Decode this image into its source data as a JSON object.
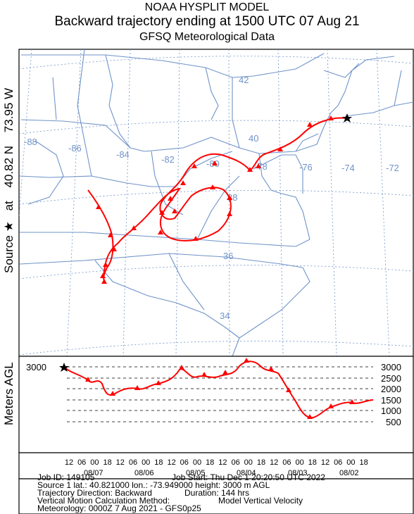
{
  "header": {
    "line1": "NOAA HYSPLIT MODEL",
    "line2": "Backward trajectory ending at 1500 UTC 07 Aug 21",
    "line3": "GFSQ Meteorological Data"
  },
  "side_label": {
    "source_prefix": "Source",
    "star": "★",
    "at_word": "at",
    "lat": "40.82 N",
    "lon": "73.95 W"
  },
  "map": {
    "lat_labels": [
      "42",
      "40",
      "38",
      "36",
      "34"
    ],
    "lon_labels": [
      "-88",
      "-86",
      "-84",
      "-82",
      "-80",
      "-78",
      "-76",
      "-74",
      "-72"
    ],
    "source_marker": "star-icon",
    "colors": {
      "trajectory": "#ff0000",
      "borders": "#6f93c9",
      "grid_labels": "#6f93c9"
    },
    "trajectory": {
      "start": {
        "lat": 40.82,
        "lon": -73.95
      },
      "duration_hours": 144,
      "direction": "Backward"
    }
  },
  "height_panel": {
    "axis_title": "Meters AGL",
    "start_label": "3000",
    "right_ticks": [
      "3000",
      "2500",
      "2000",
      "1500",
      "1000",
      "500"
    ],
    "hour_ticks": [
      "12",
      "06",
      "00",
      "18",
      "12",
      "06",
      "00",
      "18",
      "12",
      "06",
      "00",
      "18",
      "12",
      "06",
      "00",
      "18",
      "12",
      "06",
      "00",
      "18",
      "12",
      "06",
      "00",
      "18"
    ],
    "date_labels": [
      "08/07",
      "08/06",
      "08/05",
      "08/04",
      "08/03",
      "08/02"
    ]
  },
  "info": {
    "job_id": "Job ID: 149105",
    "job_start": "Job Start: Thu Dec  1 20:20:50 UTC 2022",
    "source_line": "Source 1     lat.: 40.821000     lon.: -73.949000     height: 3000 m AGL",
    "traj_direction": "Trajectory Direction: Backward",
    "duration": "Duration: 144 hrs",
    "vertical_method": "Vertical Motion Calculation Method:",
    "vertical_value": "Model Vertical Velocity",
    "meteorology": "Meteorology: 0000Z  7 Aug 2021 - GFS0p25"
  }
}
